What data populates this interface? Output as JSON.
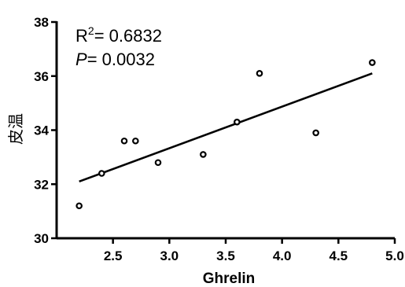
{
  "chart_data": {
    "type": "scatter",
    "xlabel": "Ghrelin",
    "ylabel": "皮温",
    "xlim": [
      2.0,
      5.0
    ],
    "ylim": [
      30,
      38
    ],
    "x_ticks": [
      "2.5",
      "3.0",
      "3.5",
      "4.0",
      "4.5",
      "5.0"
    ],
    "y_ticks": [
      "30",
      "32",
      "34",
      "36",
      "38"
    ],
    "points": [
      {
        "x": 2.2,
        "y": 31.2
      },
      {
        "x": 2.4,
        "y": 32.4
      },
      {
        "x": 2.6,
        "y": 33.6
      },
      {
        "x": 2.7,
        "y": 33.6
      },
      {
        "x": 2.9,
        "y": 32.8
      },
      {
        "x": 3.3,
        "y": 33.1
      },
      {
        "x": 3.6,
        "y": 34.3
      },
      {
        "x": 3.8,
        "y": 36.1
      },
      {
        "x": 4.3,
        "y": 33.9
      },
      {
        "x": 4.8,
        "y": 36.5
      }
    ],
    "regression_line": {
      "x": [
        2.2,
        4.8
      ],
      "y": [
        32.1,
        36.1
      ]
    },
    "annotations": {
      "r2_label": "R",
      "r2_sup": "2",
      "r2_value": "= 0.6832",
      "p_label": "P",
      "p_value": "= 0.0032"
    },
    "grid": false,
    "legend": "none"
  }
}
